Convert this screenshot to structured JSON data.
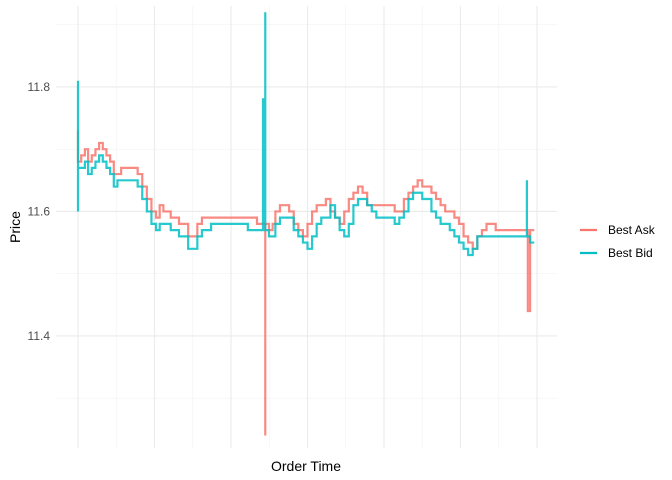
{
  "chart_data": {
    "type": "line",
    "title": "",
    "xlabel": "Order Time",
    "ylabel": "Price",
    "x_range": [
      0,
      100
    ],
    "ylim": [
      11.22,
      11.93
    ],
    "y_ticks": [
      11.4,
      11.6,
      11.8
    ],
    "y_tick_labels": [
      "11.4",
      "11.6",
      "11.8"
    ],
    "x_tick_labels": [],
    "grid": true,
    "legend_position": "right",
    "series": [
      {
        "name": "Best Ask",
        "color": "#F8766D",
        "x": [
          0,
          0,
          0.7,
          1.5,
          2.2,
          3,
          3.8,
          4.6,
          5.4,
          6.2,
          7,
          7.8,
          8.6,
          9.4,
          10.2,
          11,
          12,
          13,
          14,
          15,
          16,
          17,
          17.8,
          18.6,
          19.4,
          20.2,
          21,
          22,
          23,
          24,
          25,
          26,
          27,
          28,
          29,
          30,
          31,
          32,
          33,
          34,
          35,
          36,
          37,
          38,
          39,
          40,
          40.8,
          40.8,
          40.8,
          41.6,
          42.4,
          43,
          44,
          45,
          46,
          47,
          48,
          49,
          50,
          51,
          52,
          53,
          54,
          55,
          56,
          57,
          58,
          59,
          60,
          61,
          62,
          63,
          64,
          65,
          66,
          67,
          68,
          69,
          70,
          71,
          72,
          73,
          74,
          75,
          76,
          77,
          78,
          79,
          80,
          81,
          82,
          83,
          84,
          85,
          86,
          87,
          88,
          89,
          90,
          91,
          92,
          93,
          94,
          95,
          96,
          97,
          98,
          98,
          98.5,
          99.4
        ],
        "y": [
          11.73,
          11.68,
          11.69,
          11.7,
          11.68,
          11.69,
          11.7,
          11.71,
          11.7,
          11.69,
          11.68,
          11.66,
          11.66,
          11.67,
          11.67,
          11.67,
          11.67,
          11.66,
          11.64,
          11.62,
          11.6,
          11.59,
          11.61,
          11.6,
          11.6,
          11.59,
          11.59,
          11.58,
          11.58,
          11.56,
          11.56,
          11.58,
          11.59,
          11.59,
          11.59,
          11.59,
          11.59,
          11.59,
          11.59,
          11.59,
          11.59,
          11.59,
          11.59,
          11.59,
          11.58,
          11.58,
          11.58,
          11.24,
          11.58,
          11.57,
          11.58,
          11.6,
          11.61,
          11.61,
          11.6,
          11.58,
          11.57,
          11.56,
          11.58,
          11.6,
          11.61,
          11.61,
          11.62,
          11.6,
          11.59,
          11.58,
          11.6,
          11.62,
          11.63,
          11.64,
          11.63,
          11.61,
          11.61,
          11.61,
          11.61,
          11.61,
          11.61,
          11.6,
          11.6,
          11.62,
          11.63,
          11.64,
          11.65,
          11.64,
          11.64,
          11.63,
          11.62,
          11.61,
          11.6,
          11.6,
          11.59,
          11.58,
          11.56,
          11.55,
          11.54,
          11.56,
          11.57,
          11.58,
          11.58,
          11.57,
          11.57,
          11.57,
          11.57,
          11.57,
          11.57,
          11.57,
          11.57,
          11.44,
          11.57,
          11.57
        ]
      },
      {
        "name": "Best Bid",
        "color": "#00BFC4",
        "x": [
          0,
          0,
          0,
          0,
          0.7,
          1.5,
          2.2,
          3,
          3.8,
          4.6,
          5.4,
          6.2,
          7,
          7.8,
          8.6,
          9.4,
          10.2,
          11,
          12,
          13,
          14,
          15,
          16,
          17,
          17.8,
          18.6,
          19.4,
          20.2,
          21,
          22,
          23,
          24,
          25,
          26,
          27,
          28,
          29,
          30,
          31,
          32,
          33,
          34,
          35,
          36,
          37,
          38,
          39,
          40,
          40.3,
          40.6,
          40.8,
          40.8,
          40.8,
          41.2,
          41.6,
          42.4,
          43,
          44,
          45,
          46,
          47,
          48,
          49,
          50,
          51,
          52,
          53,
          54,
          55,
          56,
          57,
          58,
          59,
          60,
          61,
          62,
          63,
          64,
          65,
          66,
          67,
          68,
          69,
          70,
          71,
          72,
          73,
          74,
          75,
          76,
          77,
          78,
          79,
          80,
          81,
          82,
          83,
          84,
          85,
          86,
          87,
          88,
          89,
          90,
          91,
          92,
          93,
          94,
          95,
          96,
          97,
          97.8,
          97.8,
          97.8,
          98.5,
          99.4
        ],
        "y": [
          11.6,
          11.81,
          11.67,
          11.67,
          11.67,
          11.68,
          11.66,
          11.67,
          11.68,
          11.69,
          11.68,
          11.67,
          11.66,
          11.64,
          11.65,
          11.65,
          11.65,
          11.65,
          11.65,
          11.64,
          11.62,
          11.6,
          11.58,
          11.57,
          11.58,
          11.58,
          11.58,
          11.57,
          11.57,
          11.56,
          11.56,
          11.54,
          11.54,
          11.56,
          11.57,
          11.57,
          11.58,
          11.58,
          11.58,
          11.58,
          11.58,
          11.58,
          11.58,
          11.58,
          11.57,
          11.57,
          11.57,
          11.57,
          11.78,
          11.58,
          11.92,
          11.58,
          11.57,
          11.57,
          11.56,
          11.56,
          11.58,
          11.59,
          11.59,
          11.59,
          11.57,
          11.56,
          11.55,
          11.54,
          11.56,
          11.58,
          11.59,
          11.59,
          11.61,
          11.59,
          11.57,
          11.56,
          11.58,
          11.61,
          11.62,
          11.62,
          11.61,
          11.6,
          11.59,
          11.59,
          11.59,
          11.59,
          11.58,
          11.59,
          11.6,
          11.62,
          11.63,
          11.63,
          11.62,
          11.62,
          11.6,
          11.59,
          11.58,
          11.58,
          11.57,
          11.56,
          11.55,
          11.54,
          11.53,
          11.54,
          11.56,
          11.56,
          11.56,
          11.56,
          11.56,
          11.56,
          11.56,
          11.56,
          11.56,
          11.56,
          11.56,
          11.56,
          11.65,
          11.56,
          11.55,
          11.55
        ]
      }
    ]
  }
}
